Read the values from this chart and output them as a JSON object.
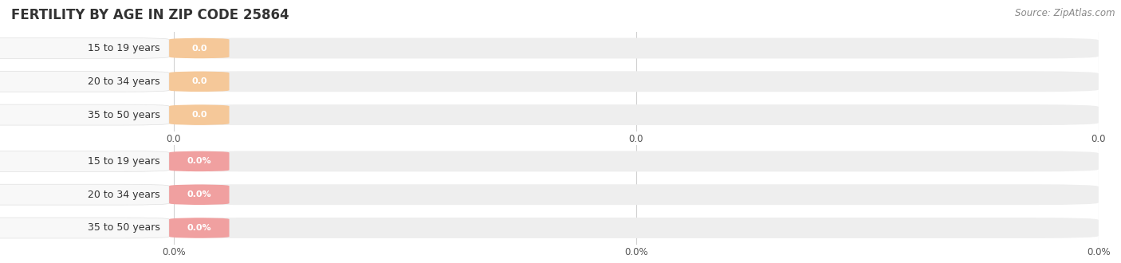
{
  "title": "FERTILITY BY AGE IN ZIP CODE 25864",
  "source_text": "Source: ZipAtlas.com",
  "top_section": {
    "categories": [
      "15 to 19 years",
      "20 to 34 years",
      "35 to 50 years"
    ],
    "values": [
      0.0,
      0.0,
      0.0
    ],
    "bar_color": "#f5c899",
    "circle_color": "#e8a050",
    "val_labels": [
      "0.0",
      "0.0",
      "0.0"
    ],
    "x_tick_positions": [
      0.0,
      0.5,
      1.0
    ],
    "x_tick_labels": [
      "0.0",
      "0.0",
      "0.0"
    ]
  },
  "bottom_section": {
    "categories": [
      "15 to 19 years",
      "20 to 34 years",
      "35 to 50 years"
    ],
    "values": [
      0.0,
      0.0,
      0.0
    ],
    "bar_color": "#f0a0a0",
    "circle_color": "#e07070",
    "val_labels": [
      "0.0%",
      "0.0%",
      "0.0%"
    ],
    "x_tick_positions": [
      0.0,
      0.5,
      1.0
    ],
    "x_tick_labels": [
      "0.0%",
      "0.0%",
      "0.0%"
    ]
  },
  "background_color": "#ffffff",
  "bar_bg_color": "#eeeeee",
  "label_box_color": "#f8f8f8",
  "title_fontsize": 12,
  "label_fontsize": 9,
  "val_fontsize": 8,
  "tick_fontsize": 8.5,
  "source_fontsize": 8.5
}
